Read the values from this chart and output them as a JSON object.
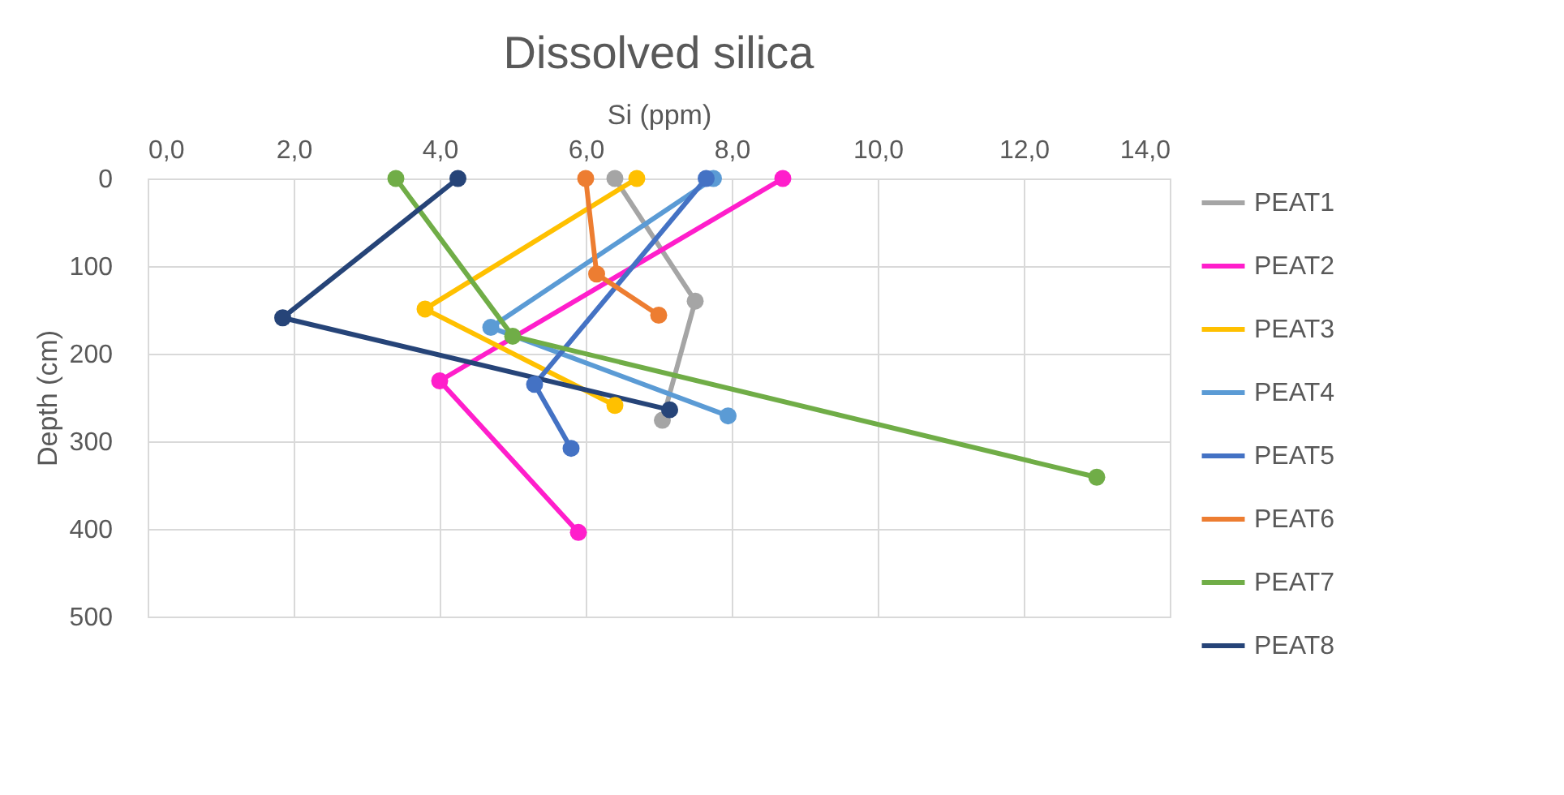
{
  "chart_data": {
    "type": "line",
    "title": "Dissolved silica",
    "xlabel": "Si (ppm)",
    "ylabel": "Depth (cm)",
    "xlim": [
      0,
      14
    ],
    "xticks": [
      {
        "value": 0,
        "label": "0,0"
      },
      {
        "value": 2,
        "label": "2,0"
      },
      {
        "value": 4,
        "label": "4,0"
      },
      {
        "value": 6,
        "label": "6,0"
      },
      {
        "value": 8,
        "label": "8,0"
      },
      {
        "value": 10,
        "label": "10,0"
      },
      {
        "value": 12,
        "label": "12,0"
      },
      {
        "value": 14,
        "label": "14,0"
      }
    ],
    "ylim": [
      500,
      0
    ],
    "yticks": [
      0,
      100,
      200,
      300,
      400,
      500
    ],
    "grid": true,
    "legend": "right",
    "marker": "circle",
    "series": [
      {
        "name": "PEAT1",
        "color": "#a5a5a5",
        "x": [
          6.4,
          7.5,
          7.05
        ],
        "values": [
          0,
          140,
          276
        ]
      },
      {
        "name": "PEAT2",
        "color": "#ff1ecb",
        "x": [
          8.7,
          4.0,
          5.9
        ],
        "values": [
          0,
          231,
          404
        ]
      },
      {
        "name": "PEAT3",
        "color": "#ffc000",
        "x": [
          6.7,
          3.8,
          6.4
        ],
        "values": [
          0,
          149,
          259
        ]
      },
      {
        "name": "PEAT4",
        "color": "#5b9bd5",
        "x": [
          7.75,
          4.7,
          7.95
        ],
        "values": [
          0,
          170,
          271
        ]
      },
      {
        "name": "PEAT5",
        "color": "#4472c4",
        "x": [
          7.65,
          5.3,
          5.8
        ],
        "values": [
          0,
          235,
          308
        ]
      },
      {
        "name": "PEAT6",
        "color": "#ed7d31",
        "x": [
          6.0,
          6.15,
          7.0
        ],
        "values": [
          0,
          109,
          156
        ]
      },
      {
        "name": "PEAT7",
        "color": "#70ad47",
        "x": [
          3.4,
          5.0,
          13.0
        ],
        "values": [
          0,
          180,
          341
        ]
      },
      {
        "name": "PEAT8",
        "color": "#264478",
        "x": [
          4.25,
          1.85,
          7.15
        ],
        "values": [
          0,
          159,
          264
        ]
      }
    ]
  }
}
